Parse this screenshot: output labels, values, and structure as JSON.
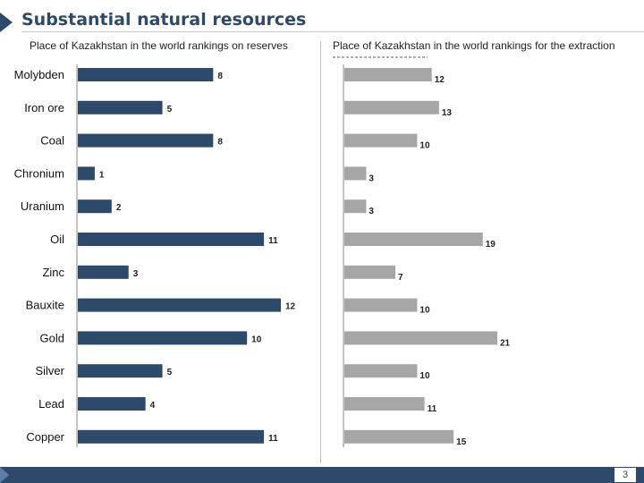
{
  "title": "Substantial natural resources",
  "page_number": "3",
  "colors": {
    "reserves": "#2e4a6b",
    "extraction": "#a6a6a6",
    "accent": "#2e4a6b"
  },
  "chart_data": [
    {
      "type": "bar",
      "orientation": "horizontal",
      "title": "Place of Kazakhstan in the world rankings on reserves",
      "categories": [
        "Molybden",
        "Iron ore",
        "Coal",
        "Chronium",
        "Uranium",
        "Oil",
        "Zinc",
        "Bauxite",
        "Gold",
        "Silver",
        "Lead",
        "Copper"
      ],
      "values": [
        8,
        5,
        8,
        1,
        2,
        11,
        3,
        12,
        10,
        5,
        4,
        11
      ],
      "xlim": [
        0,
        12
      ],
      "color": "#2e4a6b"
    },
    {
      "type": "bar",
      "orientation": "horizontal",
      "title": "Place of Kazakhstan in the world rankings for the extraction",
      "categories": [
        "Molybden",
        "Iron ore",
        "Coal",
        "Chronium",
        "Uranium",
        "Oil",
        "Zinc",
        "Bauxite",
        "Gold",
        "Silver",
        "Lead",
        "Copper"
      ],
      "values": [
        12,
        13,
        10,
        3,
        3,
        19,
        7,
        10,
        21,
        10,
        11,
        15
      ],
      "xlim": [
        0,
        21
      ],
      "color": "#a6a6a6"
    }
  ]
}
